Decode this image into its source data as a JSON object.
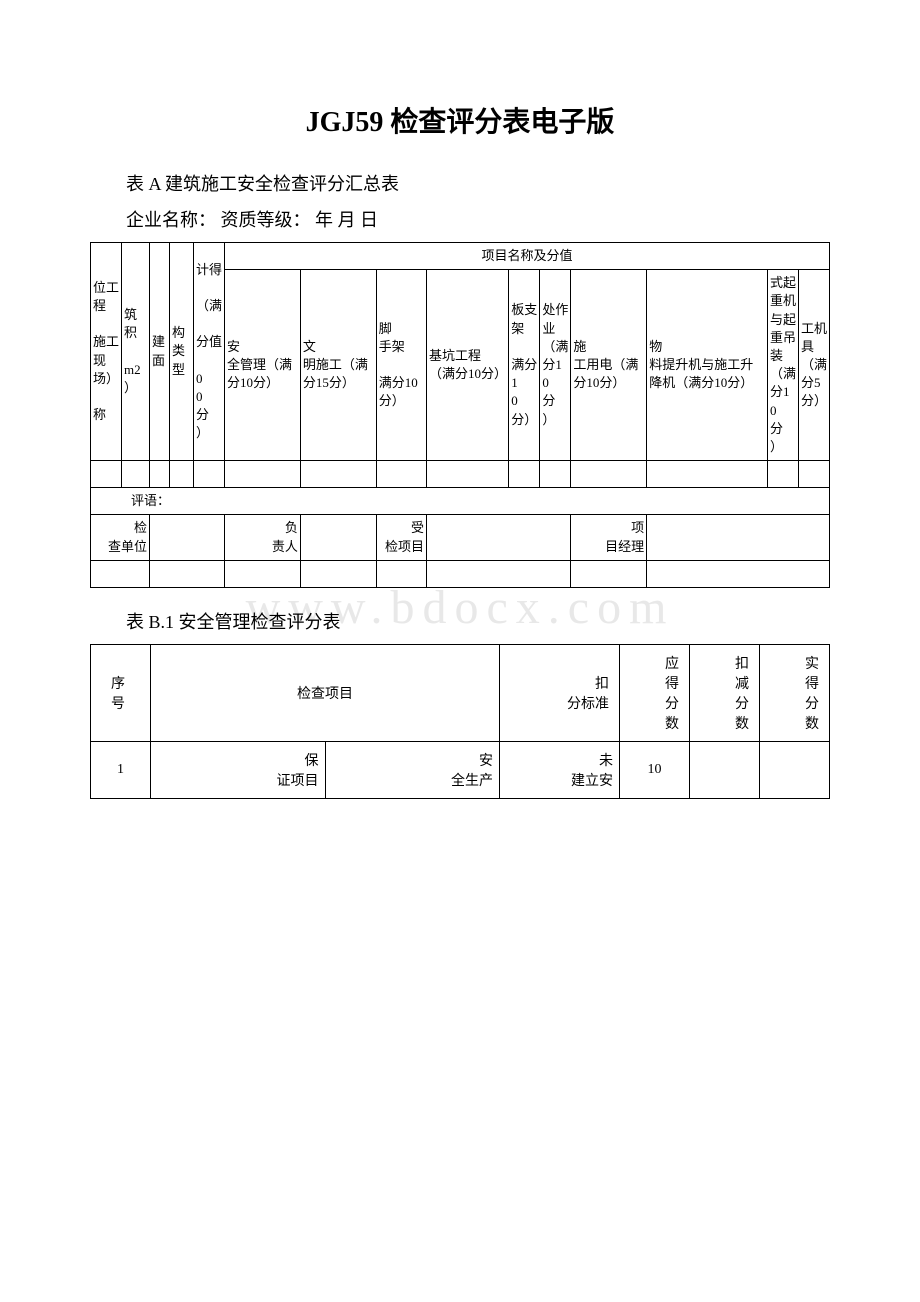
{
  "page": {
    "title": "JGJ59 检查评分表电子版",
    "table_a_title": "表 A 建筑施工安全检查评分汇总表",
    "info_line": "企业名称：  资质等级：  年 月 日",
    "table_b_title": "表 B.1 安全管理检查评分表",
    "watermark": "www.bdocx.com"
  },
  "table_a": {
    "header_merged": "项目名称及分值",
    "columns": [
      "位工程\n\n施工现场）\n\n称",
      "筑\n积\n\nm2\n）",
      "建\n面",
      "构类型",
      "计得\n\n（满\n\n分值\n\n0\n0\n分\n）",
      "安\n全管理（满分10分）",
      "文\n明施工（满分15分）",
      "脚\n手架\n\n满分10分）",
      "基坑工程（满分10分）",
      "板支架\n\n满分1\n0\n分）",
      "处作业（满分1\n0\n分\n）",
      "施\n工用电（满分10分）",
      "物\n料提升机与施工升降机（满分10分）",
      "式起重机与起重吊装（满分1\n0\n分\n）",
      "工机具（满分5分）"
    ],
    "comment_label": "评语：",
    "footer": {
      "c1": "检\n查单位",
      "c2": "负\n责人",
      "c3": "受\n检项目",
      "c4": "项\n目经理"
    }
  },
  "table_b": {
    "headers": {
      "seq": "序\n号",
      "item": "检查项目",
      "criteria": "扣\n分标准",
      "should": "应\n得\n分\n数",
      "deduct": "扣\n减\n分\n数",
      "actual": "实\n得\n分\n数"
    },
    "rows": [
      {
        "seq": "1",
        "item1": "保\n证项目",
        "item2": "安\n全生产",
        "criteria": "未\n建立安",
        "should": "10",
        "deduct": "",
        "actual": ""
      }
    ]
  },
  "styles": {
    "background_color": "#ffffff",
    "text_color": "#000000",
    "border_color": "#000000",
    "watermark_color": "#e8e8e8",
    "title_fontsize": 28,
    "subtitle_fontsize": 18,
    "cell_fontsize": 13
  }
}
